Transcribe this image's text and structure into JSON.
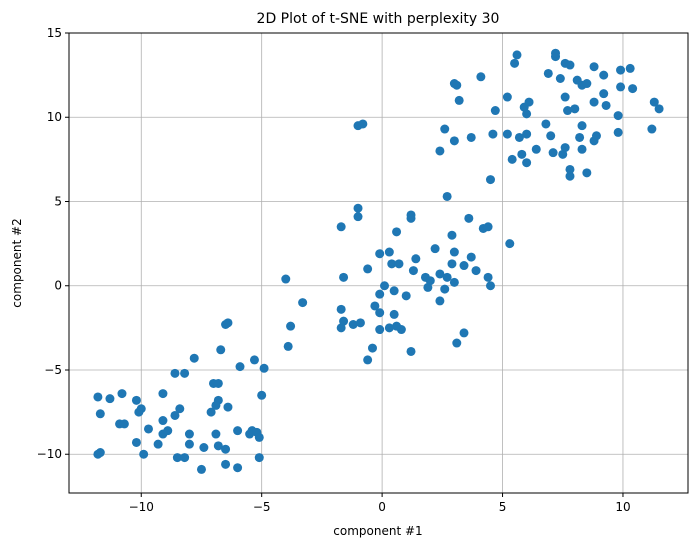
{
  "chart_data": {
    "type": "scatter",
    "title": "2D Plot of t-SNE with perplexity 30",
    "xlabel": "component #1",
    "ylabel": "component #2",
    "xlim": [
      -13,
      12.7
    ],
    "ylim": [
      -12.3,
      15
    ],
    "xticks": [
      -10,
      -5,
      0,
      5,
      10
    ],
    "yticks": [
      -10,
      -5,
      0,
      5,
      10,
      15
    ],
    "xtick_labels": [
      "−10",
      "−5",
      "0",
      "5",
      "10"
    ],
    "ytick_labels": [
      "−10",
      "−5",
      "0",
      "5",
      "10",
      "15"
    ],
    "grid": true,
    "marker_color": "#1f77b4",
    "points": [
      [
        -11.8,
        -6.6
      ],
      [
        -11.3,
        -6.7
      ],
      [
        -10.8,
        -6.4
      ],
      [
        -11.7,
        -7.6
      ],
      [
        -10.2,
        -6.8
      ],
      [
        -10.0,
        -7.3
      ],
      [
        -10.1,
        -7.5
      ],
      [
        -10.9,
        -8.2
      ],
      [
        -10.7,
        -8.2
      ],
      [
        -10.2,
        -9.3
      ],
      [
        -9.9,
        -10.0
      ],
      [
        -11.8,
        -10.0
      ],
      [
        -11.7,
        -9.9
      ],
      [
        -9.7,
        -8.5
      ],
      [
        -9.3,
        -9.4
      ],
      [
        -9.1,
        -8.8
      ],
      [
        -8.9,
        -8.6
      ],
      [
        -8.6,
        -7.7
      ],
      [
        -8.4,
        -7.3
      ],
      [
        -8.6,
        -5.2
      ],
      [
        -8.2,
        -5.2
      ],
      [
        -9.1,
        -6.4
      ],
      [
        -9.1,
        -8.0
      ],
      [
        -8.0,
        -8.8
      ],
      [
        -8.0,
        -9.4
      ],
      [
        -8.5,
        -10.2
      ],
      [
        -8.2,
        -10.2
      ],
      [
        -7.5,
        -10.9
      ],
      [
        -7.4,
        -9.6
      ],
      [
        -6.9,
        -8.8
      ],
      [
        -6.8,
        -9.5
      ],
      [
        -6.5,
        -9.7
      ],
      [
        -6.5,
        -10.6
      ],
      [
        -6.0,
        -10.8
      ],
      [
        -6.0,
        -8.6
      ],
      [
        -5.5,
        -8.8
      ],
      [
        -5.4,
        -8.6
      ],
      [
        -5.2,
        -8.7
      ],
      [
        -5.1,
        -9.0
      ],
      [
        -5.1,
        -10.2
      ],
      [
        -5.0,
        -6.5
      ],
      [
        -5.3,
        -4.4
      ],
      [
        -5.9,
        -4.8
      ],
      [
        -6.5,
        -2.3
      ],
      [
        -6.4,
        -2.2
      ],
      [
        -6.7,
        -3.8
      ],
      [
        -7.0,
        -5.8
      ],
      [
        -6.8,
        -5.8
      ],
      [
        -6.8,
        -6.8
      ],
      [
        -7.1,
        -7.5
      ],
      [
        -6.9,
        -7.1
      ],
      [
        -6.4,
        -7.2
      ],
      [
        -7.8,
        -4.3
      ],
      [
        -4.9,
        -4.9
      ],
      [
        -4.0,
        0.4
      ],
      [
        -3.8,
        -2.4
      ],
      [
        -3.9,
        -3.6
      ],
      [
        -3.3,
        -1.0
      ],
      [
        -1.7,
        -1.4
      ],
      [
        -1.7,
        -2.5
      ],
      [
        -1.6,
        -2.1
      ],
      [
        -1.2,
        -2.3
      ],
      [
        -0.9,
        -2.2
      ],
      [
        -0.6,
        -4.4
      ],
      [
        -0.4,
        -3.7
      ],
      [
        -0.6,
        1.0
      ],
      [
        -1.6,
        0.5
      ],
      [
        -1.7,
        3.5
      ],
      [
        -1.0,
        4.6
      ],
      [
        -1.0,
        4.1
      ],
      [
        -1.0,
        9.5
      ],
      [
        -0.8,
        9.6
      ],
      [
        -0.1,
        1.9
      ],
      [
        0.3,
        2.0
      ],
      [
        0.4,
        1.3
      ],
      [
        0.7,
        1.3
      ],
      [
        0.6,
        3.2
      ],
      [
        1.2,
        4.2
      ],
      [
        1.2,
        4.0
      ],
      [
        1.4,
        1.6
      ],
      [
        1.3,
        0.9
      ],
      [
        1.0,
        -0.6
      ],
      [
        0.8,
        -2.6
      ],
      [
        0.6,
        -2.4
      ],
      [
        0.5,
        -0.3
      ],
      [
        0.1,
        0.0
      ],
      [
        -0.1,
        -0.5
      ],
      [
        -0.3,
        -1.2
      ],
      [
        -0.1,
        -1.6
      ],
      [
        0.5,
        -1.7
      ],
      [
        -0.1,
        -2.6
      ],
      [
        0.3,
        -2.5
      ],
      [
        1.2,
        -3.9
      ],
      [
        1.8,
        0.5
      ],
      [
        2.0,
        0.3
      ],
      [
        1.9,
        -0.1
      ],
      [
        2.4,
        0.7
      ],
      [
        2.2,
        2.2
      ],
      [
        2.7,
        0.5
      ],
      [
        2.6,
        -0.2
      ],
      [
        2.9,
        1.3
      ],
      [
        3.0,
        2.0
      ],
      [
        2.9,
        3.0
      ],
      [
        3.4,
        1.2
      ],
      [
        3.7,
        1.7
      ],
      [
        3.1,
        -3.4
      ],
      [
        3.4,
        -2.8
      ],
      [
        2.4,
        -0.9
      ],
      [
        3.0,
        0.2
      ],
      [
        3.9,
        0.9
      ],
      [
        4.4,
        0.5
      ],
      [
        4.5,
        0.0
      ],
      [
        4.2,
        3.4
      ],
      [
        4.4,
        3.5
      ],
      [
        3.6,
        4.0
      ],
      [
        5.3,
        2.5
      ],
      [
        2.7,
        5.3
      ],
      [
        3.0,
        8.6
      ],
      [
        2.6,
        9.3
      ],
      [
        2.4,
        8.0
      ],
      [
        3.0,
        12.0
      ],
      [
        3.1,
        11.9
      ],
      [
        3.2,
        11.0
      ],
      [
        3.7,
        8.8
      ],
      [
        4.1,
        12.4
      ],
      [
        4.5,
        6.3
      ],
      [
        4.6,
        9.0
      ],
      [
        4.7,
        10.4
      ],
      [
        5.2,
        9.0
      ],
      [
        5.2,
        11.2
      ],
      [
        5.5,
        13.2
      ],
      [
        5.6,
        13.7
      ],
      [
        5.4,
        7.5
      ],
      [
        5.8,
        7.8
      ],
      [
        5.7,
        8.8
      ],
      [
        6.0,
        10.2
      ],
      [
        5.9,
        10.6
      ],
      [
        6.1,
        10.9
      ],
      [
        6.0,
        7.3
      ],
      [
        6.4,
        8.1
      ],
      [
        6.0,
        9.0
      ],
      [
        6.8,
        9.6
      ],
      [
        7.0,
        8.9
      ],
      [
        7.1,
        7.9
      ],
      [
        6.9,
        12.6
      ],
      [
        7.2,
        13.6
      ],
      [
        7.2,
        13.8
      ],
      [
        7.4,
        12.3
      ],
      [
        7.5,
        7.8
      ],
      [
        7.6,
        8.2
      ],
      [
        7.6,
        11.2
      ],
      [
        7.6,
        13.2
      ],
      [
        7.8,
        13.1
      ],
      [
        7.7,
        10.4
      ],
      [
        7.8,
        6.5
      ],
      [
        7.8,
        6.9
      ],
      [
        8.0,
        10.5
      ],
      [
        8.1,
        12.2
      ],
      [
        8.3,
        11.9
      ],
      [
        8.2,
        8.8
      ],
      [
        8.3,
        9.5
      ],
      [
        8.3,
        8.1
      ],
      [
        8.5,
        6.7
      ],
      [
        8.8,
        8.6
      ],
      [
        8.9,
        8.9
      ],
      [
        8.8,
        10.9
      ],
      [
        8.8,
        13.0
      ],
      [
        9.2,
        12.5
      ],
      [
        9.2,
        11.4
      ],
      [
        9.3,
        10.7
      ],
      [
        9.8,
        9.1
      ],
      [
        9.8,
        10.1
      ],
      [
        9.9,
        11.8
      ],
      [
        9.9,
        12.8
      ],
      [
        10.3,
        12.9
      ],
      [
        10.4,
        11.7
      ],
      [
        11.2,
        9.3
      ],
      [
        11.3,
        10.9
      ],
      [
        11.5,
        10.5
      ],
      [
        8.5,
        12.0
      ]
    ]
  }
}
